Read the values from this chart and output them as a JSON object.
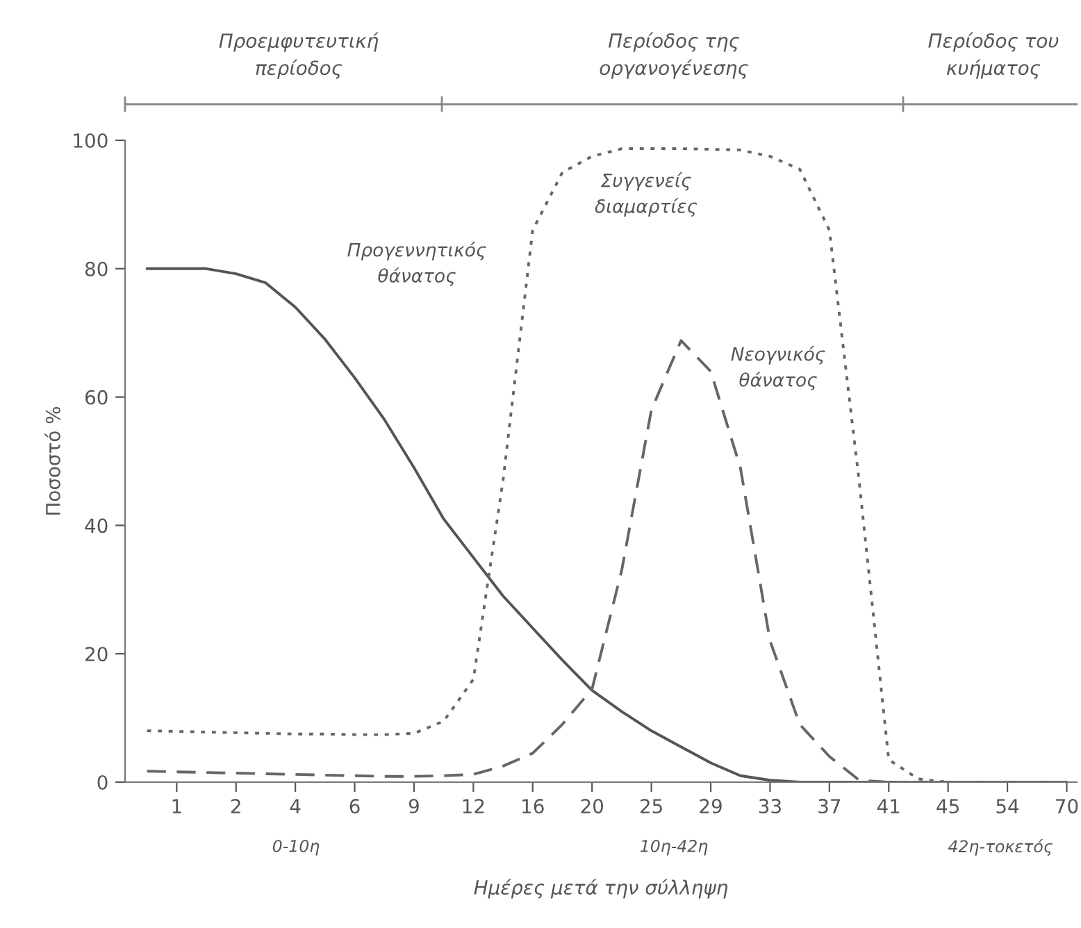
{
  "chart_data": {
    "type": "line",
    "xlabel": "Ημέρες μετά την σύλληψη",
    "ylabel": "Ποσοστό %",
    "categories": [
      null,
      "1",
      null,
      "2",
      null,
      "4",
      null,
      "6",
      null,
      "9",
      null,
      "12",
      null,
      "16",
      null,
      "20",
      null,
      "25",
      null,
      "29",
      null,
      "33",
      null,
      "37",
      null,
      "41",
      null,
      "45",
      null,
      "54",
      null,
      "70"
    ],
    "ylim": [
      0,
      100
    ],
    "yticks": [
      0,
      20,
      40,
      60,
      80,
      100
    ],
    "grid": false,
    "legend": false,
    "series": [
      {
        "color": "#555555",
        "line_style": "solid",
        "values": [
          80,
          80,
          80,
          79.2,
          77.8,
          74,
          69,
          63,
          56.5,
          49,
          41,
          35,
          29,
          24,
          19,
          14.3,
          11,
          8,
          5.5,
          3,
          1,
          0.3,
          0,
          0,
          0,
          0,
          0,
          0,
          0,
          0,
          0,
          0
        ]
      },
      {
        "color": "#666666",
        "line_style": "dotted",
        "values": [
          8,
          7.9,
          7.8,
          7.7,
          7.6,
          7.5,
          7.5,
          7.4,
          7.4,
          7.6,
          9.5,
          16,
          47,
          86,
          95,
          97.5,
          98.7,
          98.7,
          98.7,
          98.6,
          98.5,
          97.5,
          95.5,
          86,
          47,
          3.5,
          0.5,
          0,
          0,
          0,
          0,
          0
        ]
      },
      {
        "color": "#666666",
        "line_style": "dashed",
        "values": [
          1.7,
          1.6,
          1.5,
          1.4,
          1.3,
          1.2,
          1.1,
          1,
          0.9,
          0.9,
          1,
          1.2,
          2.5,
          4.5,
          9,
          14.5,
          33,
          58,
          68.8,
          64,
          49,
          22,
          9,
          4,
          0.3,
          0,
          0,
          0,
          0,
          0,
          0,
          0
        ]
      }
    ],
    "annotations": [
      "Προεμφυτευτική\nπερίοδος",
      "Περίοδος της\nοργανογένεσης",
      "Περίοδος του\nκυήματος",
      "Προγεννητικός\nθάνατος",
      "Συγγενείς\nδιαμαρτίες",
      "Νεογνικός\nθάνατος",
      "0-10η",
      "10η-42η",
      "42η-τοκετός"
    ]
  }
}
